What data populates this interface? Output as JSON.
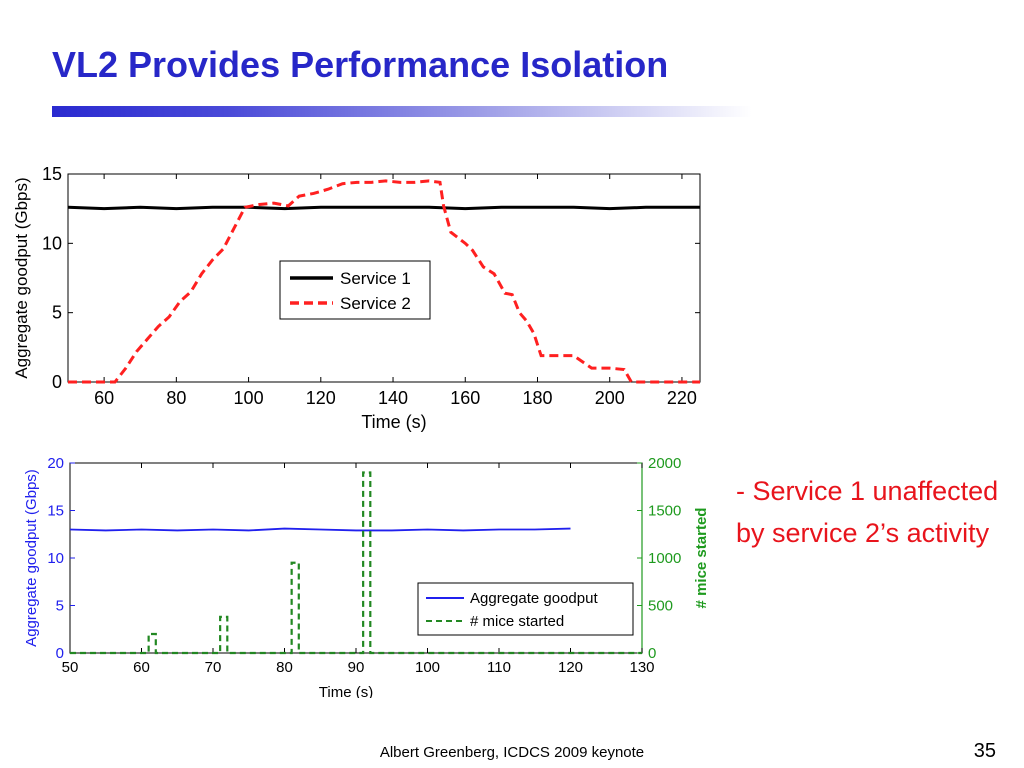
{
  "slide": {
    "title": "VL2 Provides Performance Isolation",
    "bullet": "- Service 1 unaffected by service 2’s activity",
    "footer": "Albert Greenberg, ICDCS 2009 keynote",
    "slide_number": "35"
  },
  "chart_data": [
    {
      "type": "line",
      "xlabel": "Time (s)",
      "ylabel": "Aggregate goodput (Gbps)",
      "xlim": [
        50,
        225
      ],
      "ylim": [
        0,
        15
      ],
      "xticks": [
        60,
        80,
        100,
        120,
        140,
        160,
        180,
        200,
        220
      ],
      "yticks": [
        0,
        5,
        10,
        15
      ],
      "legend_position": "center",
      "series": [
        {
          "name": "Service 1",
          "color": "#000000",
          "style": "solid",
          "x": [
            50,
            60,
            70,
            80,
            90,
            100,
            110,
            120,
            130,
            140,
            150,
            160,
            170,
            180,
            190,
            200,
            210,
            220,
            225
          ],
          "y": [
            12.6,
            12.5,
            12.6,
            12.5,
            12.6,
            12.6,
            12.5,
            12.6,
            12.6,
            12.6,
            12.6,
            12.5,
            12.6,
            12.6,
            12.6,
            12.5,
            12.6,
            12.6,
            12.6
          ]
        },
        {
          "name": "Service 2",
          "color": "#ff2020",
          "style": "dashed",
          "x": [
            50,
            60,
            63,
            66,
            69,
            72,
            75,
            78,
            81,
            84,
            87,
            90,
            93,
            96,
            99,
            103,
            107,
            111,
            114,
            118,
            122,
            126,
            130,
            134,
            138,
            142,
            146,
            150,
            153,
            154,
            156,
            158,
            160,
            162,
            165,
            168,
            171,
            173,
            175,
            177,
            179,
            181,
            183,
            186,
            190,
            195,
            200,
            204,
            206,
            210,
            215,
            220,
            225
          ],
          "y": [
            0,
            0,
            0,
            1.0,
            2.2,
            3.1,
            4.0,
            4.7,
            5.8,
            6.5,
            7.8,
            8.8,
            9.6,
            11.1,
            12.6,
            12.8,
            12.9,
            12.7,
            13.4,
            13.6,
            13.9,
            14.3,
            14.4,
            14.4,
            14.5,
            14.4,
            14.4,
            14.5,
            14.4,
            12.7,
            10.8,
            10.4,
            10.0,
            9.5,
            8.3,
            7.8,
            6.4,
            6.3,
            5.0,
            4.4,
            3.5,
            1.9,
            1.9,
            1.9,
            1.9,
            1.0,
            1.0,
            0.9,
            0,
            0,
            0,
            0,
            0
          ]
        }
      ]
    },
    {
      "type": "line",
      "xlabel": "Time (s)",
      "ylabel": "Aggregate goodput (Gbps)",
      "y2label": "# mice started",
      "xlim": [
        50,
        130
      ],
      "ylim": [
        0,
        20
      ],
      "y2lim": [
        0,
        2000
      ],
      "xticks": [
        50,
        60,
        70,
        80,
        90,
        100,
        110,
        120,
        130
      ],
      "yticks": [
        0,
        5,
        10,
        15,
        20
      ],
      "y2ticks": [
        0,
        500,
        1000,
        1500,
        2000
      ],
      "legend_position": "bottom-right",
      "series": [
        {
          "name": "Aggregate goodput",
          "axis": "left",
          "color": "#2020ee",
          "style": "solid",
          "x": [
            50,
            55,
            60,
            65,
            70,
            75,
            80,
            85,
            90,
            95,
            100,
            105,
            110,
            115,
            120
          ],
          "y": [
            13.0,
            12.9,
            13.0,
            12.9,
            13.0,
            12.9,
            13.1,
            13.0,
            12.9,
            12.9,
            13.0,
            12.9,
            13.0,
            13.0,
            13.1
          ]
        },
        {
          "name": "# mice started",
          "axis": "right",
          "color": "#228822",
          "style": "dashed",
          "x": [
            50,
            61,
            61,
            62,
            62,
            71,
            71,
            72,
            72,
            81,
            81,
            82,
            82,
            91,
            91,
            92,
            92,
            130
          ],
          "y": [
            0,
            0,
            200,
            200,
            0,
            0,
            380,
            380,
            0,
            0,
            950,
            950,
            0,
            0,
            1900,
            1900,
            0,
            0
          ]
        }
      ]
    }
  ]
}
